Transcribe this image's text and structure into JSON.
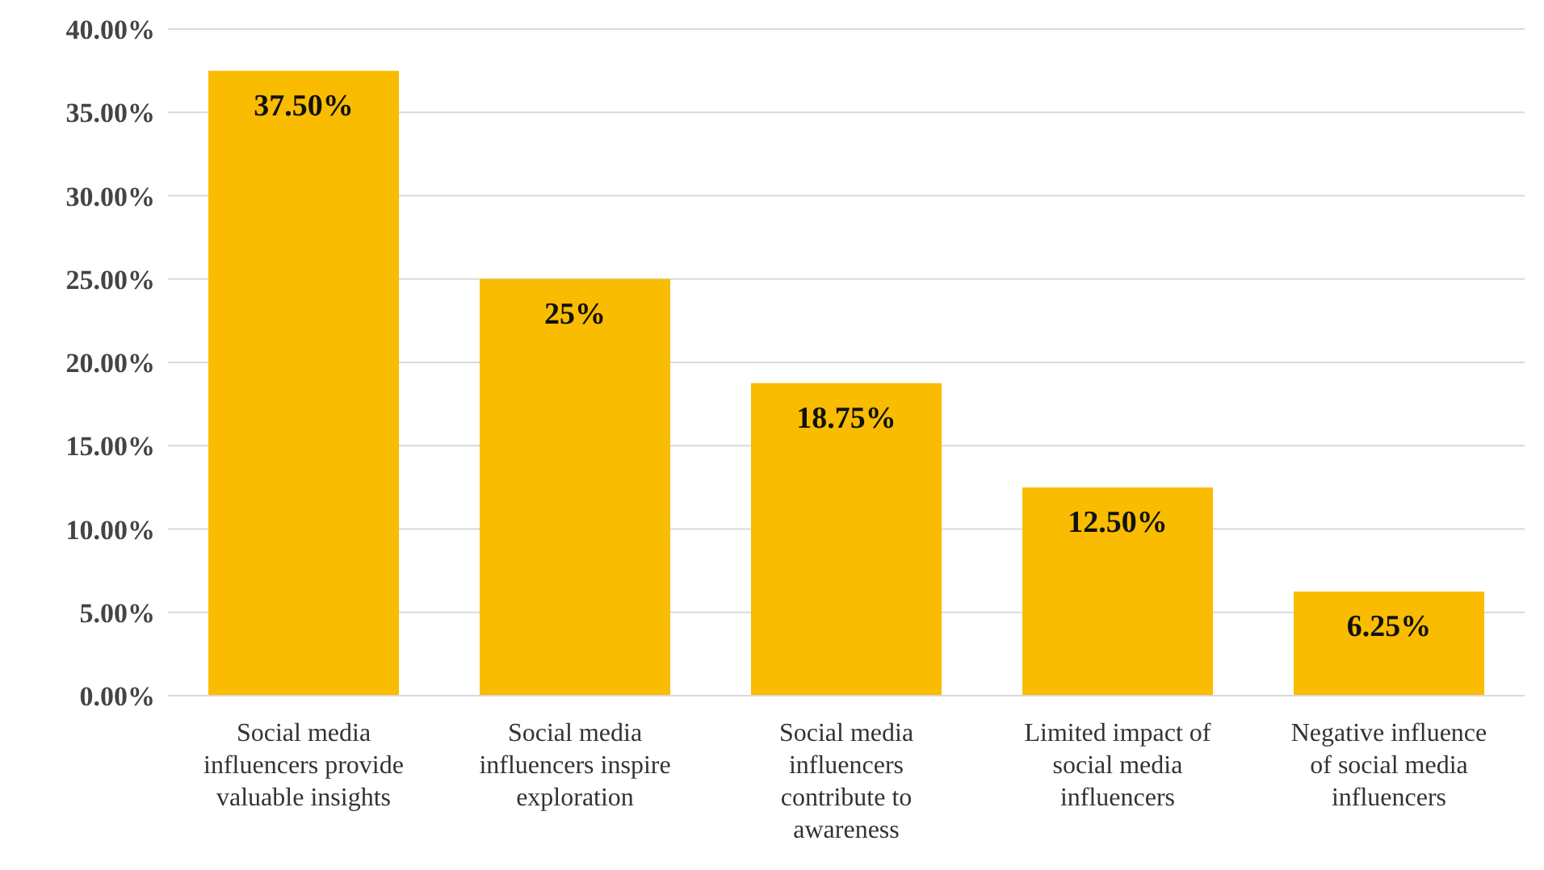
{
  "chart_data": {
    "type": "bar",
    "categories": [
      "Social media influencers provide valuable insights",
      "Social media influencers inspire exploration",
      "Social media influencers contribute to awareness",
      "Limited impact of social media influencers",
      "Negative influence of social media influencers"
    ],
    "values": [
      37.5,
      25,
      18.75,
      12.5,
      6.25
    ],
    "value_labels": [
      "37.50%",
      "25%",
      "18.75%",
      "12.50%",
      "6.25%"
    ],
    "color": "#f9bc00",
    "ylim": [
      0,
      40
    ],
    "yticks": [
      {
        "value": 0,
        "label": "0.00%"
      },
      {
        "value": 5,
        "label": "5.00%"
      },
      {
        "value": 10,
        "label": "10.00%"
      },
      {
        "value": 15,
        "label": "15.00%"
      },
      {
        "value": 20,
        "label": "20.00%"
      },
      {
        "value": 25,
        "label": "25.00%"
      },
      {
        "value": 30,
        "label": "30.00%"
      },
      {
        "value": 35,
        "label": "35.00%"
      },
      {
        "value": 40,
        "label": "40.00%"
      }
    ],
    "grid": "y"
  }
}
